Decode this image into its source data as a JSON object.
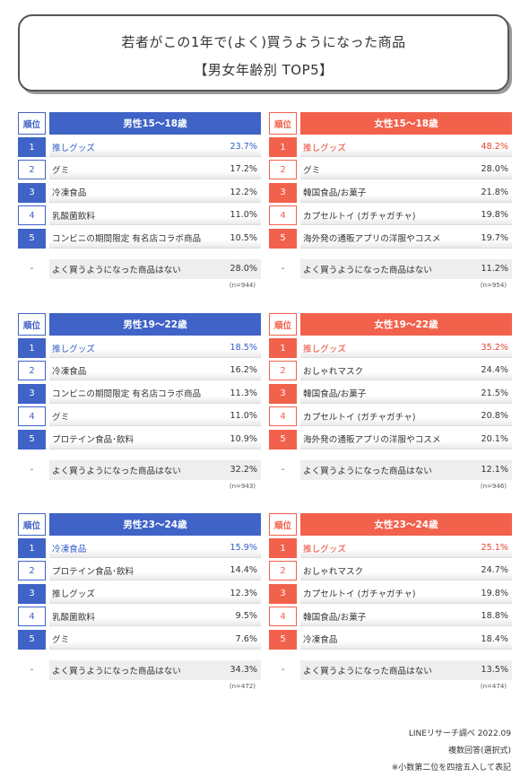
{
  "title": {
    "line1": "若者がこの1年で(よく)買うようになった商品",
    "line2": "【男女年齢別 TOP5】"
  },
  "rank_header": "順位",
  "none_dash": "-",
  "colors": {
    "male": "#3f63c6",
    "female": "#f2614c"
  },
  "groups": [
    {
      "header": "男性15～18歳",
      "items": [
        {
          "rank": "1",
          "label": "推しグッズ",
          "value": "23.7%"
        },
        {
          "rank": "2",
          "label": "グミ",
          "value": "17.2%"
        },
        {
          "rank": "3",
          "label": "冷凍食品",
          "value": "12.2%"
        },
        {
          "rank": "4",
          "label": "乳酸菌飲料",
          "value": "11.0%"
        },
        {
          "rank": "5",
          "label": "コンビニの期間限定 有名店コラボ商品",
          "value": "10.5%"
        }
      ],
      "none": {
        "label": "よく買うようになった商品はない",
        "value": "28.0%"
      },
      "n": "(n=944)"
    },
    {
      "header": "女性15～18歳",
      "items": [
        {
          "rank": "1",
          "label": "推しグッズ",
          "value": "48.2%"
        },
        {
          "rank": "2",
          "label": "グミ",
          "value": "28.0%"
        },
        {
          "rank": "3",
          "label": "韓国食品/お菓子",
          "value": "21.8%"
        },
        {
          "rank": "4",
          "label": "カプセルトイ (ガチャガチャ)",
          "value": "19.8%"
        },
        {
          "rank": "5",
          "label": "海外発の通販アプリの洋服やコスメ",
          "value": "19.7%"
        }
      ],
      "none": {
        "label": "よく買うようになった商品はない",
        "value": "11.2%"
      },
      "n": "(n=954)"
    },
    {
      "header": "男性19～22歳",
      "items": [
        {
          "rank": "1",
          "label": "推しグッズ",
          "value": "18.5%"
        },
        {
          "rank": "2",
          "label": "冷凍食品",
          "value": "16.2%"
        },
        {
          "rank": "3",
          "label": "コンビニの期間限定 有名店コラボ商品",
          "value": "11.3%"
        },
        {
          "rank": "4",
          "label": "グミ",
          "value": "11.0%"
        },
        {
          "rank": "5",
          "label": "プロテイン食品･飲料",
          "value": "10.9%"
        }
      ],
      "none": {
        "label": "よく買うようになった商品はない",
        "value": "32.2%"
      },
      "n": "(n=943)"
    },
    {
      "header": "女性19～22歳",
      "items": [
        {
          "rank": "1",
          "label": "推しグッズ",
          "value": "35.2%"
        },
        {
          "rank": "2",
          "label": "おしゃれマスク",
          "value": "24.4%"
        },
        {
          "rank": "3",
          "label": "韓国食品/お菓子",
          "value": "21.5%"
        },
        {
          "rank": "4",
          "label": "カプセルトイ (ガチャガチャ)",
          "value": "20.8%"
        },
        {
          "rank": "5",
          "label": "海外発の通販アプリの洋服やコスメ",
          "value": "20.1%"
        }
      ],
      "none": {
        "label": "よく買うようになった商品はない",
        "value": "12.1%"
      },
      "n": "(n=946)"
    },
    {
      "header": "男性23～24歳",
      "items": [
        {
          "rank": "1",
          "label": "冷凍食品",
          "value": "15.9%"
        },
        {
          "rank": "2",
          "label": "プロテイン食品･飲料",
          "value": "14.4%"
        },
        {
          "rank": "3",
          "label": "推しグッズ",
          "value": "12.3%"
        },
        {
          "rank": "4",
          "label": "乳酸菌飲料",
          "value": "9.5%"
        },
        {
          "rank": "5",
          "label": "グミ",
          "value": "7.6%"
        }
      ],
      "none": {
        "label": "よく買うようになった商品はない",
        "value": "34.3%"
      },
      "n": "(n=472)"
    },
    {
      "header": "女性23～24歳",
      "items": [
        {
          "rank": "1",
          "label": "推しグッズ",
          "value": "25.1%"
        },
        {
          "rank": "2",
          "label": "おしゃれマスク",
          "value": "24.7%"
        },
        {
          "rank": "3",
          "label": "カプセルトイ (ガチャガチャ)",
          "value": "19.8%"
        },
        {
          "rank": "4",
          "label": "韓国食品/お菓子",
          "value": "18.8%"
        },
        {
          "rank": "5",
          "label": "冷凍食品",
          "value": "18.4%"
        }
      ],
      "none": {
        "label": "よく買うようになった商品はない",
        "value": "13.5%"
      },
      "n": "(n=474)"
    }
  ],
  "footer": {
    "source": "LINEリサーチ調べ 2022.09",
    "note1": "複数回答(選択式)",
    "note2": "※小数第二位を四捨五入して表記"
  }
}
